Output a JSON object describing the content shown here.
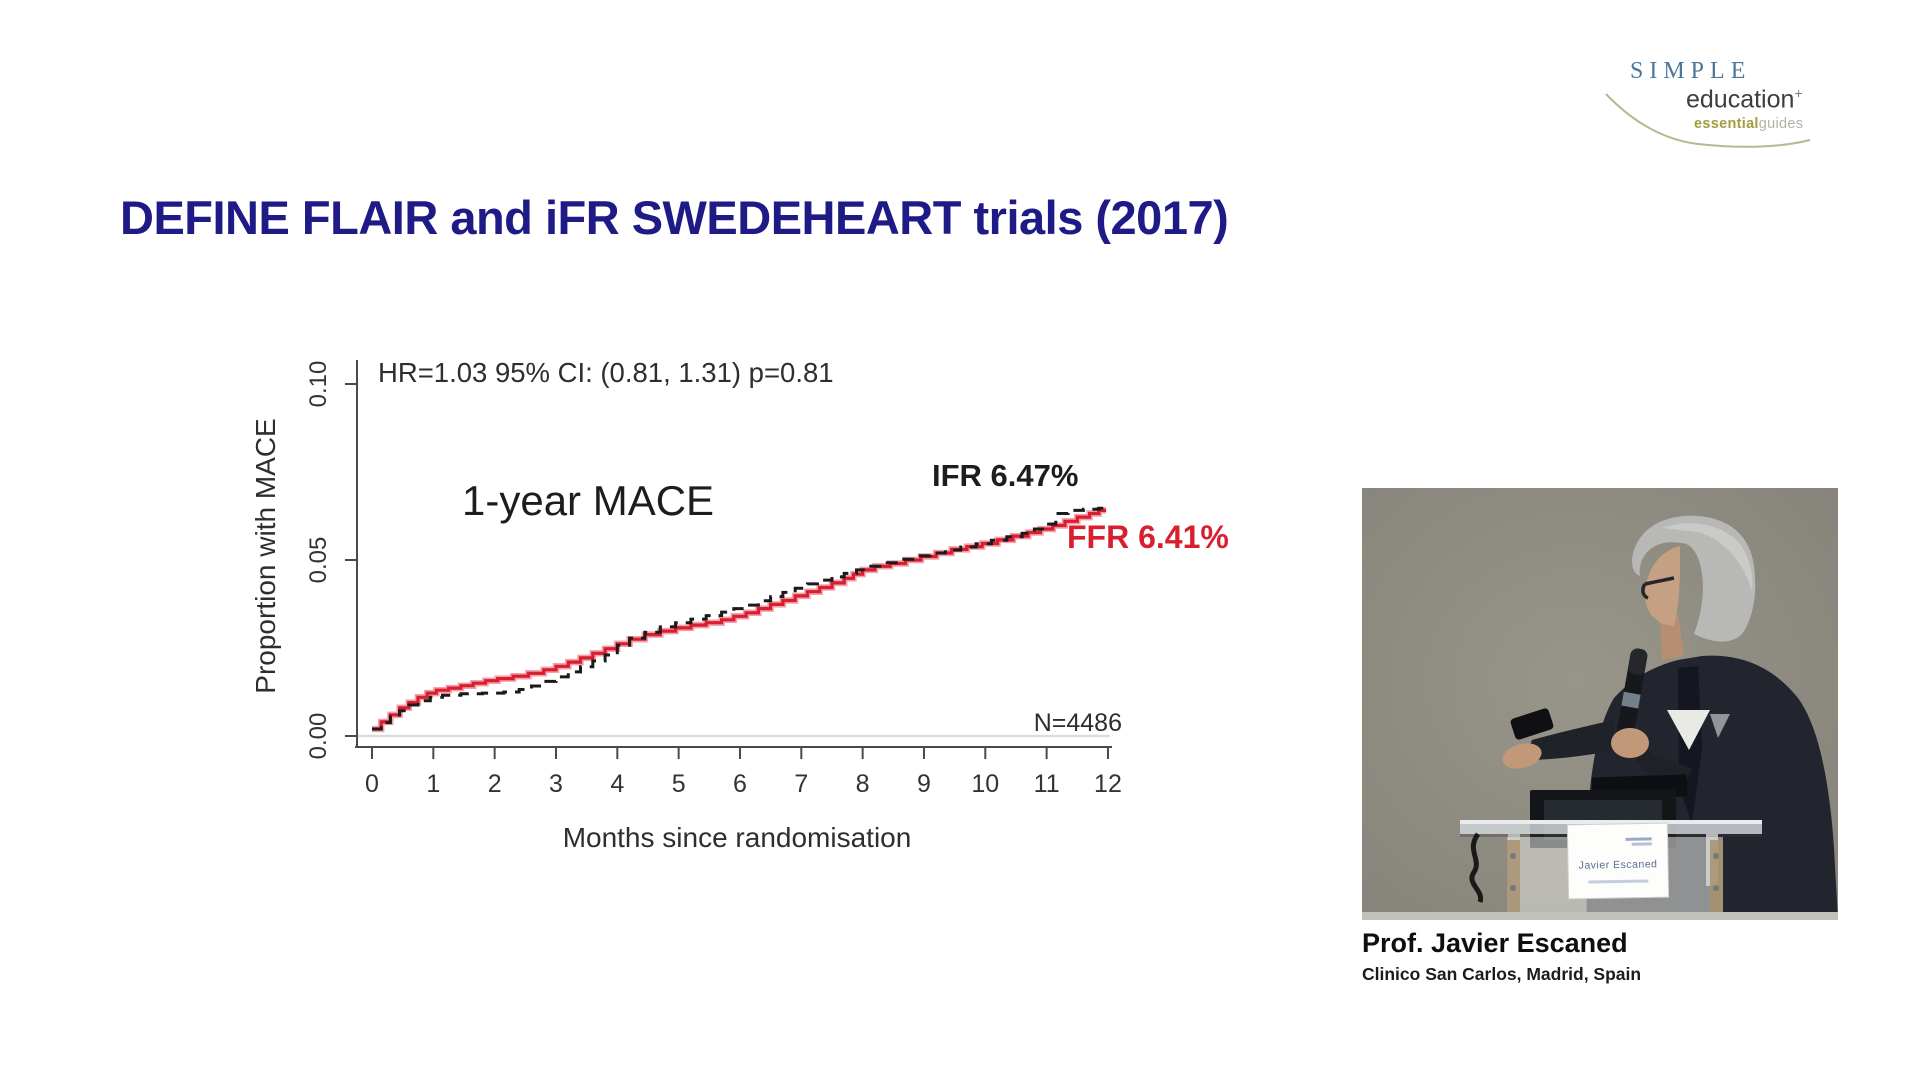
{
  "slide": {
    "title": "DEFINE FLAIR and iFR SWEDEHEART trials (2017)",
    "title_color": "#1e1a86",
    "background": "#ffffff"
  },
  "logo": {
    "line1": "SIMPLE",
    "line2": "education",
    "line2_superscript": "+",
    "line3_bold": "essential",
    "line3_light": "guides",
    "colors": {
      "simple": "#49789c",
      "education": "#3d3d3d",
      "essential": "#a59c3f",
      "guides": "#b3b3a6",
      "swoosh": "#a9a672"
    }
  },
  "chart_data": {
    "type": "line",
    "subtype": "kaplan-meier-step",
    "annotation_main": "1-year MACE",
    "annotation_stats": "HR=1.03  95% CI: (0.81, 1.31) p=0.81",
    "annotation_n": "N=4486",
    "xlabel": "Months since randomisation",
    "ylabel": "Proportion with MACE",
    "xlim": [
      0,
      12
    ],
    "ylim": [
      0,
      0.1
    ],
    "xticks": [
      "0",
      "1",
      "2",
      "3",
      "4",
      "5",
      "6",
      "7",
      "8",
      "9",
      "10",
      "11",
      "12"
    ],
    "yticks": [
      {
        "label": "0.00",
        "value": 0.0
      },
      {
        "label": "0.05",
        "value": 0.05
      },
      {
        "label": "0.10",
        "value": 0.1
      }
    ],
    "grid": "zero-line-only",
    "zero_line_color": "#dcdcdc",
    "axis_color": "#4a4a4a",
    "legend_position": "end-of-curve-labels",
    "series": [
      {
        "name": "FFR",
        "end_label": "FFR 6.41%",
        "final_value_pct": 6.41,
        "color": "#d81f2f",
        "halo_color": "#f5a0ac",
        "style": "solid",
        "points": [
          [
            0,
            0.002
          ],
          [
            0.15,
            0.004
          ],
          [
            0.3,
            0.006
          ],
          [
            0.45,
            0.008
          ],
          [
            0.6,
            0.0095
          ],
          [
            0.75,
            0.011
          ],
          [
            0.9,
            0.0122
          ],
          [
            1.05,
            0.013
          ],
          [
            1.25,
            0.0136
          ],
          [
            1.45,
            0.0143
          ],
          [
            1.65,
            0.015
          ],
          [
            1.85,
            0.0157
          ],
          [
            2.05,
            0.0163
          ],
          [
            2.3,
            0.017
          ],
          [
            2.55,
            0.0178
          ],
          [
            2.8,
            0.0188
          ],
          [
            3.0,
            0.0198
          ],
          [
            3.2,
            0.021
          ],
          [
            3.4,
            0.0222
          ],
          [
            3.6,
            0.0235
          ],
          [
            3.8,
            0.0248
          ],
          [
            4.0,
            0.0262
          ],
          [
            4.2,
            0.0275
          ],
          [
            4.45,
            0.0288
          ],
          [
            4.7,
            0.0298
          ],
          [
            4.95,
            0.0307
          ],
          [
            5.2,
            0.0315
          ],
          [
            5.45,
            0.0322
          ],
          [
            5.7,
            0.033
          ],
          [
            5.9,
            0.034
          ],
          [
            6.1,
            0.035
          ],
          [
            6.3,
            0.0362
          ],
          [
            6.5,
            0.0374
          ],
          [
            6.7,
            0.0385
          ],
          [
            6.9,
            0.0398
          ],
          [
            7.1,
            0.041
          ],
          [
            7.3,
            0.0422
          ],
          [
            7.5,
            0.0435
          ],
          [
            7.7,
            0.0448
          ],
          [
            7.85,
            0.046
          ],
          [
            8.0,
            0.0472
          ],
          [
            8.2,
            0.0482
          ],
          [
            8.45,
            0.049
          ],
          [
            8.7,
            0.05
          ],
          [
            8.95,
            0.051
          ],
          [
            9.2,
            0.052
          ],
          [
            9.45,
            0.053
          ],
          [
            9.7,
            0.0538
          ],
          [
            9.95,
            0.0547
          ],
          [
            10.2,
            0.0557
          ],
          [
            10.45,
            0.0568
          ],
          [
            10.7,
            0.0578
          ],
          [
            10.9,
            0.0588
          ],
          [
            11.1,
            0.0598
          ],
          [
            11.3,
            0.061
          ],
          [
            11.5,
            0.0622
          ],
          [
            11.7,
            0.0632
          ],
          [
            11.85,
            0.0641
          ]
        ]
      },
      {
        "name": "IFR",
        "end_label": "IFR  6.47%",
        "final_value_pct": 6.47,
        "color": "#1b1b1b",
        "style": "dashed",
        "points": [
          [
            0,
            0.002
          ],
          [
            0.15,
            0.0038
          ],
          [
            0.3,
            0.0055
          ],
          [
            0.45,
            0.0072
          ],
          [
            0.6,
            0.0088
          ],
          [
            0.75,
            0.01
          ],
          [
            0.95,
            0.011
          ],
          [
            1.15,
            0.0116
          ],
          [
            1.45,
            0.012
          ],
          [
            1.8,
            0.0122
          ],
          [
            2.15,
            0.0125
          ],
          [
            2.4,
            0.0132
          ],
          [
            2.6,
            0.0142
          ],
          [
            2.8,
            0.0155
          ],
          [
            3.0,
            0.0168
          ],
          [
            3.2,
            0.0182
          ],
          [
            3.4,
            0.0197
          ],
          [
            3.6,
            0.0213
          ],
          [
            3.8,
            0.023
          ],
          [
            4.0,
            0.0258
          ],
          [
            4.2,
            0.0278
          ],
          [
            4.45,
            0.0295
          ],
          [
            4.7,
            0.031
          ],
          [
            4.95,
            0.0322
          ],
          [
            5.2,
            0.0332
          ],
          [
            5.45,
            0.0342
          ],
          [
            5.7,
            0.0352
          ],
          [
            5.9,
            0.0362
          ],
          [
            6.1,
            0.0372
          ],
          [
            6.3,
            0.0384
          ],
          [
            6.5,
            0.0396
          ],
          [
            6.7,
            0.0408
          ],
          [
            6.9,
            0.042
          ],
          [
            7.1,
            0.0432
          ],
          [
            7.3,
            0.0443
          ],
          [
            7.5,
            0.0452
          ],
          [
            7.7,
            0.0462
          ],
          [
            7.9,
            0.0472
          ],
          [
            8.1,
            0.0482
          ],
          [
            8.35,
            0.0492
          ],
          [
            8.6,
            0.0502
          ],
          [
            8.85,
            0.0512
          ],
          [
            9.1,
            0.052
          ],
          [
            9.35,
            0.0528
          ],
          [
            9.6,
            0.0537
          ],
          [
            9.85,
            0.0546
          ],
          [
            10.1,
            0.0556
          ],
          [
            10.35,
            0.0566
          ],
          [
            10.6,
            0.0576
          ],
          [
            10.8,
            0.0588
          ],
          [
            11.0,
            0.0602
          ],
          [
            11.15,
            0.0632
          ],
          [
            11.35,
            0.0641
          ],
          [
            11.6,
            0.0644
          ],
          [
            11.85,
            0.0647
          ]
        ]
      }
    ]
  },
  "photo": {
    "name_card_text": "Javier Escaned",
    "caption_name": "Prof. Javier Escaned",
    "caption_affiliation": "Clinico San Carlos, Madrid, Spain"
  }
}
